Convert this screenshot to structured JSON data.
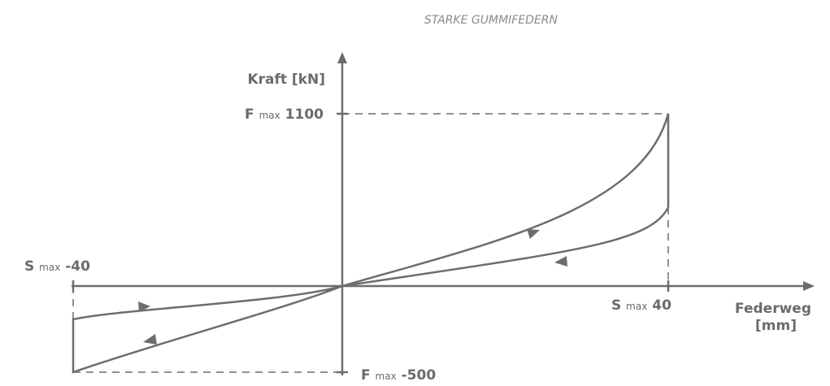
{
  "title": "STARKE GUMMIFEDERN",
  "y_axis": {
    "label": "Kraft [kN]"
  },
  "x_axis": {
    "label": [
      "Federweg",
      "[mm]"
    ]
  },
  "markers": [
    {
      "symbol": "F",
      "subscript": "max",
      "value": "1100"
    },
    {
      "symbol": "F",
      "subscript": "max",
      "value": "-500"
    },
    {
      "symbol": "S",
      "subscript": "max",
      "value": "40"
    },
    {
      "symbol": "S",
      "subscript": "max",
      "value": "-40"
    }
  ]
}
